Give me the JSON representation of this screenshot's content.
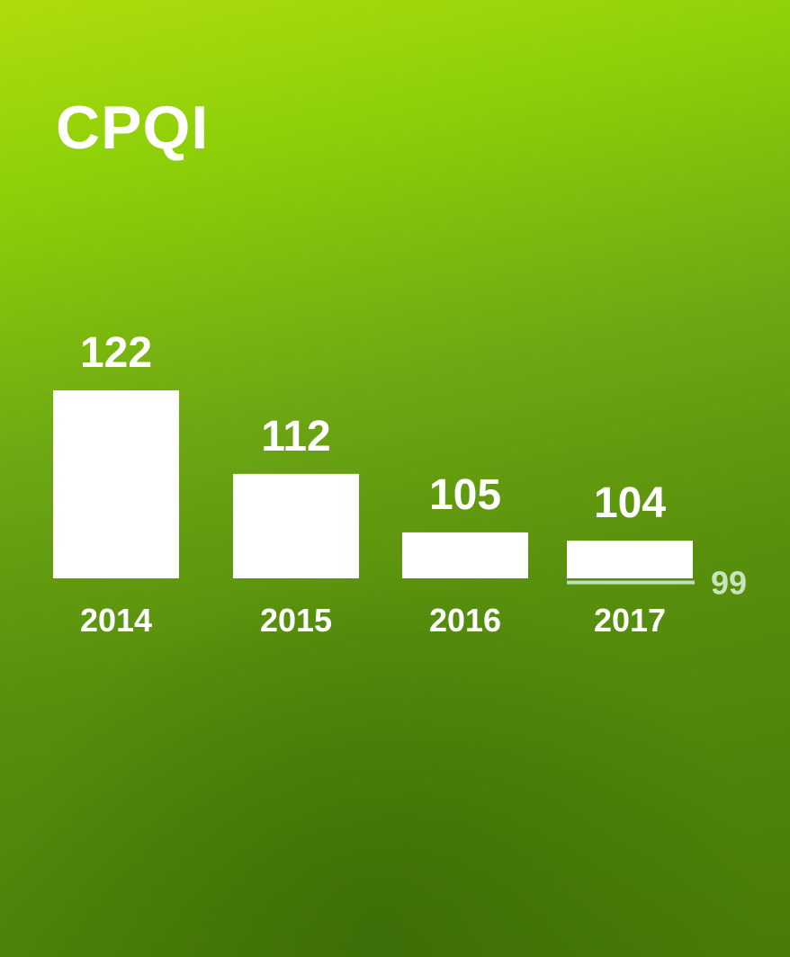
{
  "chart_data": {
    "type": "bar",
    "title": "CPQI",
    "xlabel": "",
    "ylabel": "",
    "categories": [
      "2014",
      "2015",
      "2016",
      "2017"
    ],
    "values": [
      122,
      112,
      105,
      104
    ],
    "data_labels": [
      "122",
      "112",
      "105",
      "104"
    ],
    "target": {
      "category": "2017",
      "value": 99,
      "label": "99"
    },
    "grid": false,
    "legend": "none",
    "colors": {
      "bars": "#ffffff",
      "text": "#ffffff",
      "target_line": "#bfe0b4",
      "target_label": "#c9e3be",
      "background_top": "#aedc0c",
      "background_bottom": "#4a7a08"
    }
  }
}
